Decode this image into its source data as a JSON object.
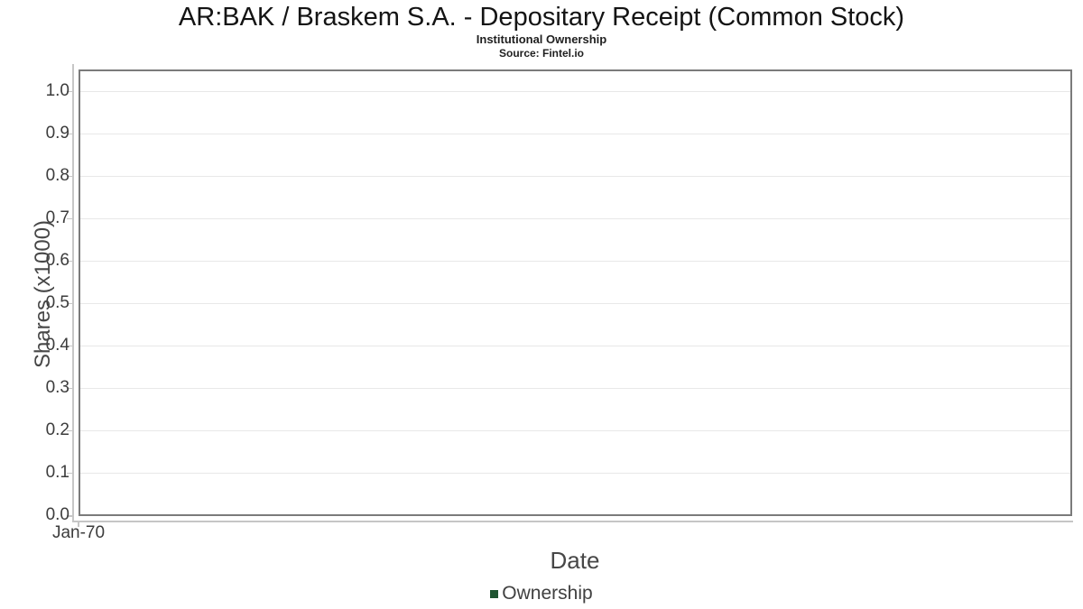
{
  "chart_data": {
    "type": "line",
    "title": "AR:BAK / Braskem S.A. - Depositary Receipt (Common Stock)",
    "subtitle": "Institutional Ownership",
    "source_note": "Source: Fintel.io",
    "xlabel": "Date",
    "ylabel": "Shares (x1000)",
    "x_tick_labels": [
      "Jan-70"
    ],
    "y_tick_labels": [
      "0.0",
      "0.1",
      "0.2",
      "0.3",
      "0.4",
      "0.5",
      "0.6",
      "0.7",
      "0.8",
      "0.9",
      "1.0"
    ],
    "ylim": [
      0,
      1.05
    ],
    "grid": true,
    "legend": {
      "position": "bottom",
      "items": [
        {
          "label": "Ownership",
          "color": "#1e5430"
        }
      ]
    },
    "series": [
      {
        "name": "Ownership",
        "color": "#1e5430",
        "x": [],
        "values": []
      }
    ]
  },
  "colors": {
    "plot_border": "#7b7b7b",
    "gridline": "#e8e8e8",
    "axis_line": "#c6c6c6",
    "tick_text": "#3c3c3c",
    "axis_title_text": "#474747",
    "title_text": "#141414",
    "background": "#ffffff"
  }
}
